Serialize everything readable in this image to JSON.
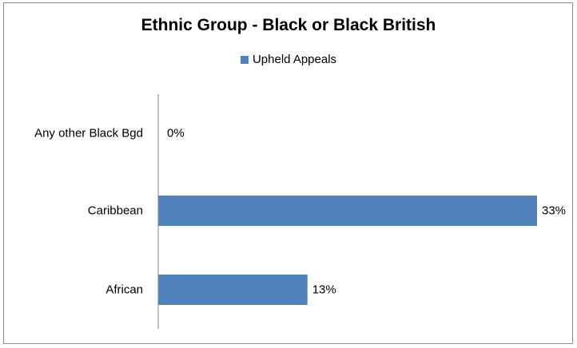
{
  "chart_data": {
    "type": "bar",
    "orientation": "horizontal",
    "title": "Ethnic Group - Black or Black British",
    "categories": [
      "Any other Black Bgd",
      "Caribbean",
      "African"
    ],
    "series": [
      {
        "name": "Upheld Appeals",
        "values": [
          0,
          33,
          13
        ],
        "labels": [
          "0%",
          "33%",
          "13%"
        ],
        "color": "#4f81bd"
      }
    ],
    "unit": "%",
    "xlim": [
      0,
      35
    ],
    "grid": false,
    "legend_position": "top"
  }
}
